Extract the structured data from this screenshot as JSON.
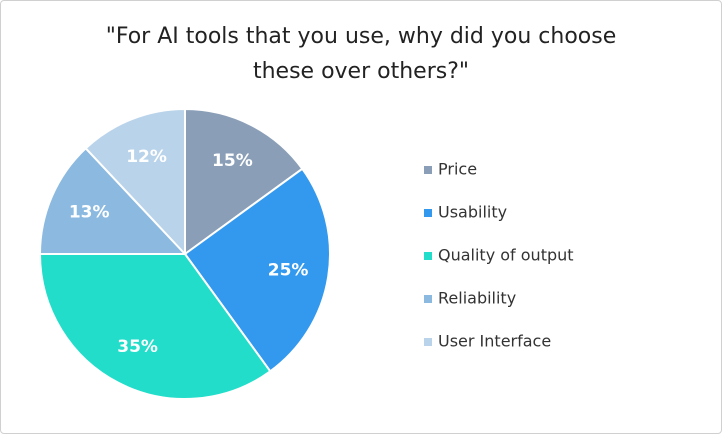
{
  "chart_data": {
    "type": "pie",
    "title": "\"For AI tools that you use, why did you choose these over others?\"",
    "categories": [
      "Price",
      "Usability",
      "Quality of output",
      "Reliability",
      "User Interface"
    ],
    "values": [
      15,
      25,
      35,
      13,
      12
    ],
    "value_labels": [
      "15%",
      "25%",
      "35%",
      "13%",
      "12%"
    ],
    "colors": [
      "#8a9fb7",
      "#3399ef",
      "#22ddc9",
      "#8bb9e0",
      "#b9d3ea"
    ],
    "legend": "right"
  }
}
